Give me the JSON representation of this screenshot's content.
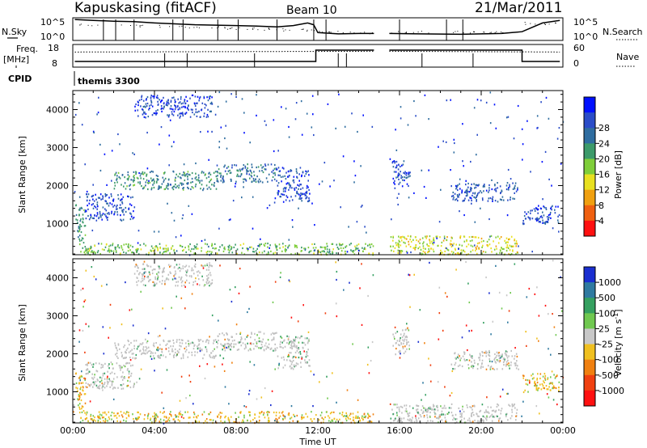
{
  "header": {
    "title": "Kapuskasing (fitACF)",
    "beam": "Beam 10",
    "date": "21/Mar/2011"
  },
  "params": {
    "nsky_label": "N.Sky",
    "nsky_ticks": [
      "10^5",
      "10^0"
    ],
    "nsearch_label": "N.Search",
    "nsearch_ticks": [
      "10^5",
      "10^0"
    ],
    "freq_label": "Freq.",
    "freq_unit": "[MHz]",
    "freq_ticks": [
      "18",
      "8"
    ],
    "nave_label": "Nave",
    "nave_ticks": [
      "60",
      "0"
    ],
    "cpid_label": "CPID",
    "cpid_value": "themis 3300"
  },
  "axes": {
    "ylabel": "Slant Range [km]",
    "xlabel": "Time UT",
    "xticks": [
      "00:00",
      "04:00",
      "08:00",
      "12:00",
      "16:00",
      "20:00",
      "00:00"
    ],
    "yticks": [
      "1000",
      "2000",
      "3000",
      "4000"
    ]
  },
  "colorbars": {
    "power": {
      "label": "Power [dB]",
      "ticks": [
        "4",
        "8",
        "12",
        "16",
        "20",
        "24",
        "28"
      ],
      "colors": [
        "#0010ff",
        "#2a4cc8",
        "#2f6da0",
        "#3c9a6a",
        "#7fce3a",
        "#e8e020",
        "#f0a010",
        "#f06010",
        "#ff1010"
      ]
    },
    "velocity": {
      "label": "Velocity [m s",
      "label_sup": "-1",
      "label_end": "]",
      "ticks": [
        "1000",
        "500",
        "100",
        "25",
        "-25",
        "-100",
        "-500",
        "-1000"
      ],
      "colors": [
        "#1a2fd0",
        "#2f7aa0",
        "#35a060",
        "#70c850",
        "#c8c8c8",
        "#f0c020",
        "#f08010",
        "#f04010",
        "#ff1010"
      ]
    }
  },
  "chart_data": [
    {
      "type": "line",
      "title": "N.Sky / N.Search",
      "x_range_hours": [
        0,
        24
      ],
      "ylim_log10": [
        0,
        5
      ],
      "gaps_hours": [
        [
          0,
          0.1
        ],
        [
          14.75,
          15.5
        ],
        [
          23.85,
          24
        ]
      ],
      "series": [
        {
          "name": "N.Sky",
          "x": [
            0.1,
            0.5,
            1,
            2,
            3,
            4,
            5,
            6,
            7,
            8,
            9,
            10,
            10.8,
            11.5,
            11.8,
            12,
            13,
            14,
            14.75,
            15.5,
            17,
            19,
            21,
            22,
            23,
            23.85
          ],
          "y": [
            4.8,
            4.7,
            4.6,
            4.4,
            4.3,
            4.0,
            3.8,
            3.6,
            3.5,
            3.4,
            3.3,
            3.1,
            3.4,
            4.0,
            3.6,
            1.8,
            1.5,
            1.6,
            1.6,
            1.6,
            1.5,
            1.4,
            1.6,
            2.0,
            4.0,
            4.6
          ]
        }
      ]
    },
    {
      "type": "line",
      "title": "Freq. / Nave",
      "x_range_hours": [
        0,
        24
      ],
      "ylim": [
        8,
        18
      ],
      "gaps_hours": [
        [
          14.75,
          15.5
        ],
        [
          23.85,
          24
        ]
      ],
      "series": [
        {
          "name": "Freq.",
          "x": [
            0.1,
            11.9,
            11.9,
            14.75,
            15.5,
            22,
            22,
            23.85
          ],
          "y": [
            10.5,
            10.5,
            15.5,
            15.5,
            15.5,
            15.5,
            10.5,
            10.5
          ]
        },
        {
          "name": "Nave",
          "x": [
            0.1,
            6,
            12,
            14.75,
            15.5,
            20,
            23.85
          ],
          "y": [
            40,
            42,
            44,
            44,
            44,
            44,
            42
          ]
        }
      ]
    },
    {
      "type": "heatmap",
      "title": "Power [dB]",
      "xlabel": "Time UT",
      "ylabel": "Slant Range [km]",
      "x_range_hours": [
        0,
        24
      ],
      "ylim": [
        180,
        4500
      ],
      "zlim": [
        0,
        30
      ],
      "regions": [
        {
          "t0": 0.1,
          "t1": 0.6,
          "r0": 500,
          "r1": 1600,
          "power": 10
        },
        {
          "t0": 0.6,
          "t1": 3.0,
          "r0": 1100,
          "r1": 1800,
          "power": 4
        },
        {
          "t0": 2.0,
          "t1": 7.0,
          "r0": 1900,
          "r1": 2400,
          "power": 10
        },
        {
          "t0": 7.0,
          "t1": 10.0,
          "r0": 2100,
          "r1": 2600,
          "power": 8
        },
        {
          "t0": 10.0,
          "t1": 11.6,
          "r0": 1600,
          "r1": 2500,
          "power": 4
        },
        {
          "t0": 3.0,
          "t1": 6.8,
          "r0": 3800,
          "r1": 4400,
          "power": 3
        },
        {
          "t0": 0.3,
          "t1": 14.7,
          "r0": 200,
          "r1": 500,
          "power": 14
        },
        {
          "t0": 15.5,
          "t1": 21.8,
          "r0": 200,
          "r1": 700,
          "power": 18
        },
        {
          "t0": 15.6,
          "t1": 16.5,
          "r0": 2000,
          "r1": 2700,
          "power": 4
        },
        {
          "t0": 18.5,
          "t1": 21.8,
          "r0": 1600,
          "r1": 2100,
          "power": 5
        },
        {
          "t0": 22.0,
          "t1": 23.8,
          "r0": 1000,
          "r1": 1500,
          "power": 4
        }
      ]
    },
    {
      "type": "heatmap",
      "title": "Velocity [m s-1]",
      "xlabel": "Time UT",
      "ylabel": "Slant Range [km]",
      "x_range_hours": [
        0,
        24
      ],
      "ylim": [
        180,
        4500
      ],
      "zlim": [
        -1000,
        1000
      ],
      "regions": [
        {
          "t0": 0.1,
          "t1": 0.6,
          "r0": 500,
          "r1": 1600,
          "velocity": -100
        },
        {
          "t0": 0.6,
          "t1": 3.0,
          "r0": 1100,
          "r1": 1800,
          "velocity": 0
        },
        {
          "t0": 2.0,
          "t1": 7.0,
          "r0": 1900,
          "r1": 2400,
          "velocity": 0
        },
        {
          "t0": 7.0,
          "t1": 10.0,
          "r0": 2100,
          "r1": 2600,
          "velocity": 0
        },
        {
          "t0": 10.0,
          "t1": 11.6,
          "r0": 1600,
          "r1": 2500,
          "velocity": 0
        },
        {
          "t0": 3.0,
          "t1": 6.8,
          "r0": 3800,
          "r1": 4400,
          "velocity": 0
        },
        {
          "t0": 0.3,
          "t1": 14.7,
          "r0": 200,
          "r1": 500,
          "velocity": -100
        },
        {
          "t0": 15.5,
          "t1": 21.8,
          "r0": 200,
          "r1": 700,
          "velocity": 50
        },
        {
          "t0": 15.6,
          "t1": 16.5,
          "r0": 2000,
          "r1": 2700,
          "velocity": 0
        },
        {
          "t0": 18.5,
          "t1": 21.8,
          "r0": 1600,
          "r1": 2100,
          "velocity": 0
        },
        {
          "t0": 22.0,
          "t1": 23.8,
          "r0": 1000,
          "r1": 1500,
          "velocity": -100
        }
      ]
    }
  ]
}
